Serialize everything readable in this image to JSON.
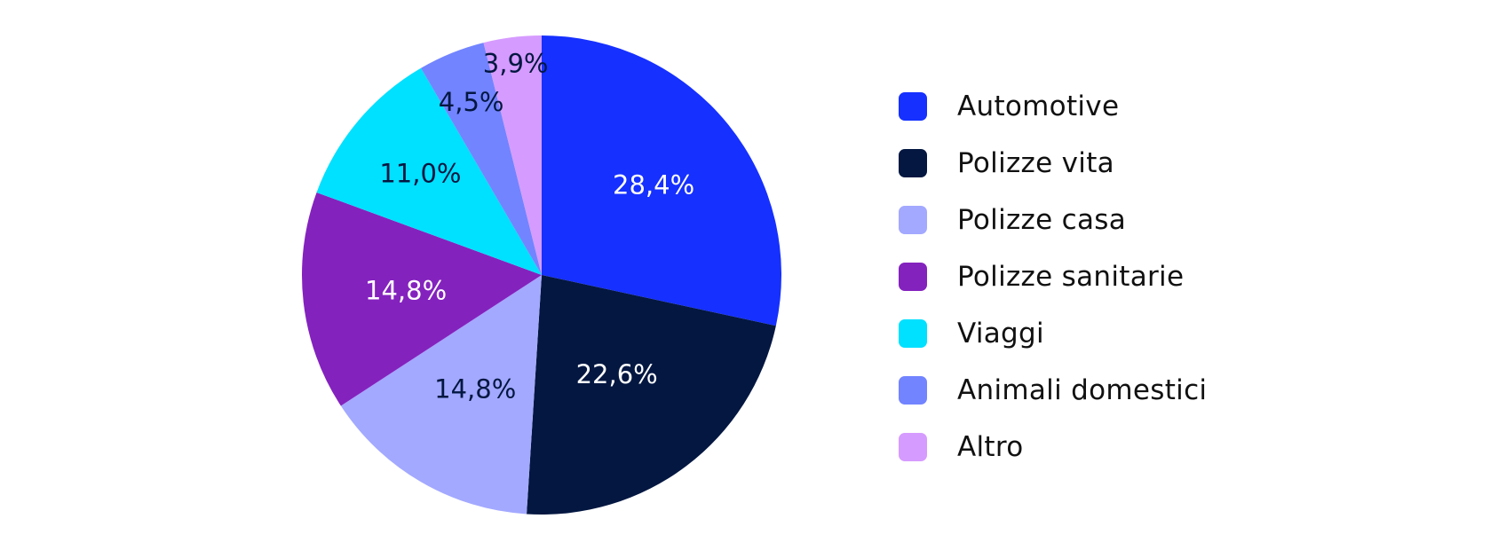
{
  "chart_data": {
    "type": "pie",
    "title": "",
    "slices": [
      {
        "name": "Automotive",
        "value": 28.4,
        "label": "28,4%",
        "color": "#1530FF",
        "label_color": "#FFFFFF"
      },
      {
        "name": "Polizze vita",
        "value": 22.6,
        "label": "22,6%",
        "color": "#031741",
        "label_color": "#FFFFFF"
      },
      {
        "name": "Polizze casa",
        "value": 14.8,
        "label": "14,8%",
        "color": "#A3A9FF",
        "label_color": "#031741"
      },
      {
        "name": "Polizze sanitarie",
        "value": 14.8,
        "label": "14,8%",
        "color": "#8422BE",
        "label_color": "#FFFFFF"
      },
      {
        "name": "Viaggi",
        "value": 11.0,
        "label": "11,0%",
        "color": "#00E0FF",
        "label_color": "#031741"
      },
      {
        "name": "Animali domestici",
        "value": 4.5,
        "label": "4,5%",
        "color": "#7284FF",
        "label_color": "#031741"
      },
      {
        "name": "Altro",
        "value": 3.9,
        "label": "3,9%",
        "color": "#D69BFF",
        "label_color": "#031741"
      }
    ],
    "legend_position": "right",
    "start_angle": "12 o'clock",
    "direction": "clockwise"
  }
}
